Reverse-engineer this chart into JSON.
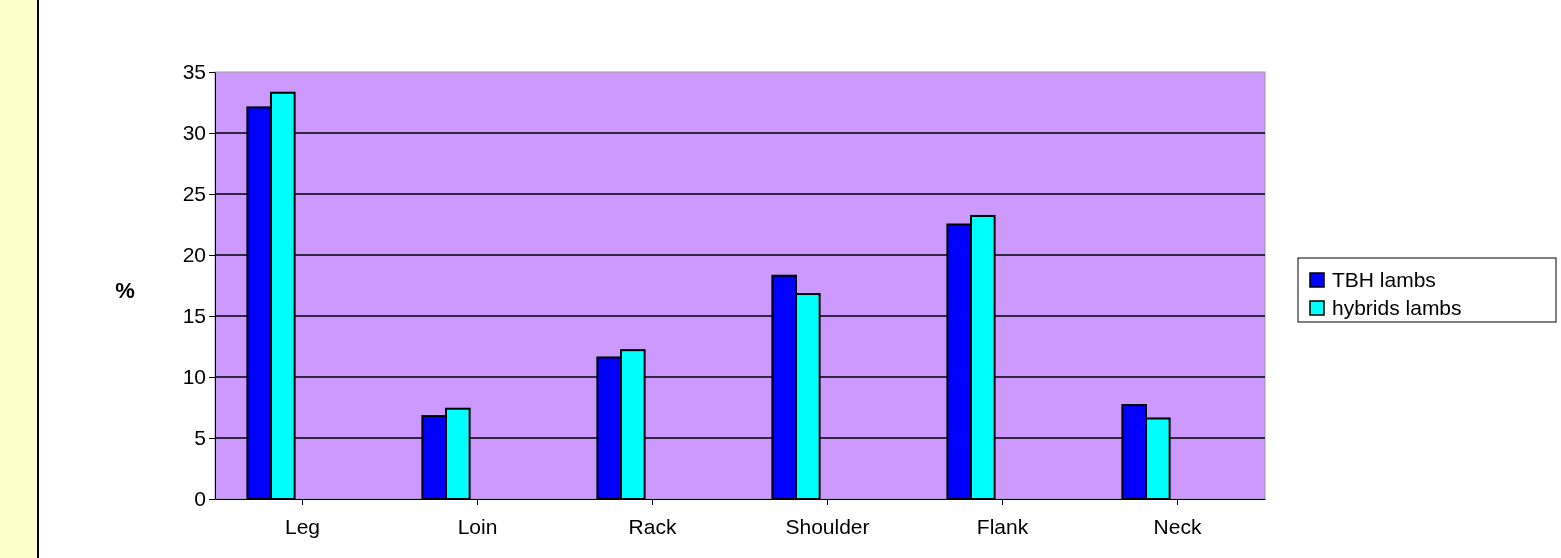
{
  "chart_data": {
    "type": "bar",
    "ylabel": "%",
    "categories": [
      "Leg",
      "Loin",
      "Rack",
      "Shoulder",
      "Flank",
      "Neck"
    ],
    "series": [
      {
        "name": "TBH lambs",
        "color": "#0000ff",
        "values": [
          32.1,
          6.8,
          11.6,
          18.3,
          22.5,
          7.7
        ]
      },
      {
        "name": "hybrids lambs",
        "color": "#00ffff",
        "values": [
          33.3,
          7.4,
          12.2,
          16.8,
          23.2,
          6.6
        ]
      }
    ],
    "ylim": [
      0,
      35
    ],
    "yticks": [
      0,
      5,
      10,
      15,
      20,
      25,
      30,
      35
    ],
    "grid": "y",
    "legend": "right"
  }
}
